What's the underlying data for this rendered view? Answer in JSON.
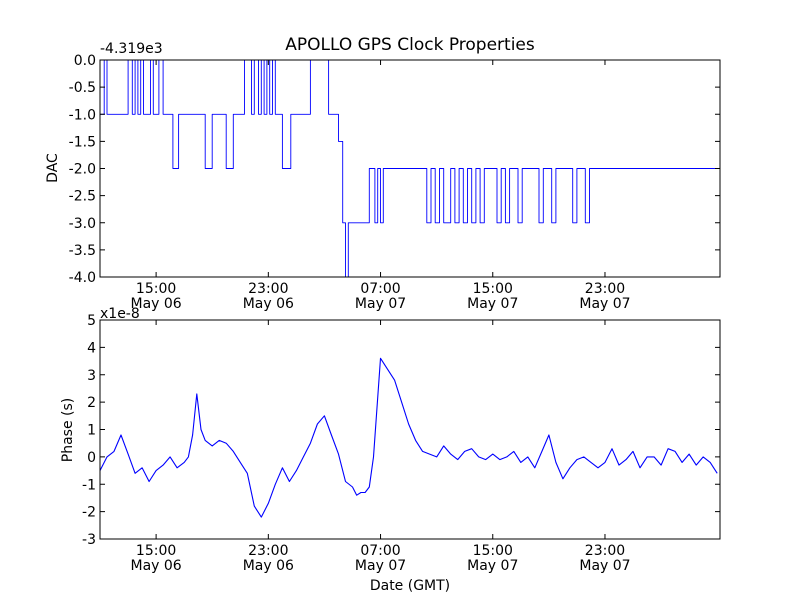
{
  "chart_data": [
    {
      "type": "line",
      "title": "APOLLO GPS Clock Properties",
      "ylabel": "DAC",
      "xlabel": "",
      "y_offset_text": "-4.319e3",
      "ylim": [
        -4.0,
        0.0
      ],
      "x_unit": "hours since May 06 00:00 GMT",
      "xlim": [
        11,
        55.2
      ],
      "yticks": [
        "0.0",
        "-0.5",
        "-1.0",
        "-1.5",
        "-2.0",
        "-2.5",
        "-3.0",
        "-3.5",
        "-4.0"
      ],
      "xticks": [
        {
          "x": 15,
          "time": "15:00",
          "date": "May 06"
        },
        {
          "x": 23,
          "time": "23:00",
          "date": "May 06"
        },
        {
          "x": 31,
          "time": "07:00",
          "date": "May 07"
        },
        {
          "x": 39,
          "time": "15:00",
          "date": "May 07"
        },
        {
          "x": 47,
          "time": "23:00",
          "date": "May 07"
        }
      ],
      "series": [
        {
          "color": "#0000ff",
          "x": [
            11.0,
            11.3,
            11.5,
            12.8,
            13.0,
            13.3,
            13.5,
            13.7,
            13.9,
            14.1,
            14.3,
            14.6,
            14.8,
            15.0,
            15.2,
            15.5,
            15.8,
            16.0,
            16.2,
            16.4,
            16.6,
            16.8,
            17.0,
            17.2,
            17.4,
            18.0,
            18.5,
            19.0,
            19.5,
            20.0,
            20.5,
            21.0,
            21.3,
            21.8,
            22.0,
            22.3,
            22.5,
            22.7,
            22.9,
            23.1,
            23.3,
            23.5,
            23.7,
            24.0,
            24.3,
            24.6,
            25.0,
            25.5,
            26.0,
            26.5,
            27.0,
            27.3,
            28.0,
            28.3,
            28.5,
            28.7,
            29.0,
            29.2,
            29.5,
            29.7,
            30.0,
            30.2,
            30.4,
            30.6,
            30.8,
            31.0,
            31.2,
            31.5,
            32.0,
            32.3,
            32.6,
            32.9,
            33.2,
            33.5,
            34.0,
            34.3,
            34.6,
            34.9,
            35.2,
            35.5,
            36.0,
            36.3,
            36.6,
            36.9,
            37.2,
            37.5,
            37.8,
            38.1,
            38.4,
            38.7,
            39.0,
            39.3,
            39.6,
            39.9,
            40.2,
            40.5,
            40.8,
            41.1,
            41.4,
            41.7,
            42.0,
            42.3,
            42.6,
            42.9,
            43.2,
            43.5,
            43.8,
            44.1,
            44.4,
            44.7,
            45.0,
            45.3,
            45.6,
            45.9,
            46.2,
            46.5,
            46.8,
            47.1,
            47.4,
            47.7,
            48.0,
            48.3,
            48.6,
            48.9,
            49.2,
            49.5,
            49.8,
            50.1,
            50.4,
            50.7,
            51.0,
            51.3,
            51.6,
            51.9,
            52.2,
            52.5,
            52.8,
            53.1,
            53.4,
            53.7,
            54.0,
            54.3,
            54.6,
            54.9,
            55.2
          ],
          "y": [
            -1.0,
            0.0,
            -1.0,
            -1.0,
            0.0,
            -1.0,
            0.0,
            -1.0,
            0.0,
            -1.0,
            -1.0,
            0.0,
            -1.0,
            -1.0,
            0.0,
            -1.0,
            -1.0,
            -1.0,
            -2.0,
            -2.0,
            -1.0,
            -1.0,
            -1.0,
            -1.0,
            -1.0,
            -1.0,
            -2.0,
            -1.0,
            -1.0,
            -2.0,
            -1.0,
            -1.0,
            0.0,
            -1.0,
            0.0,
            -1.0,
            0.0,
            -1.0,
            0.0,
            -1.0,
            0.0,
            -1.0,
            -1.0,
            -2.0,
            -2.0,
            -1.0,
            -1.0,
            -1.0,
            0.0,
            0.0,
            0.0,
            -1.0,
            -1.5,
            -3.0,
            -4.0,
            -3.0,
            -3.0,
            -3.0,
            -3.0,
            -3.0,
            -3.0,
            -2.0,
            -2.0,
            -3.0,
            -2.0,
            -3.0,
            -2.0,
            -2.0,
            -2.0,
            -2.0,
            -2.0,
            -2.0,
            -2.0,
            -2.0,
            -2.0,
            -3.0,
            -2.0,
            -3.0,
            -2.0,
            -3.0,
            -2.0,
            -3.0,
            -2.0,
            -3.0,
            -2.0,
            -3.0,
            -2.0,
            -3.0,
            -2.0,
            -2.0,
            -2.0,
            -3.0,
            -2.0,
            -3.0,
            -2.0,
            -2.0,
            -3.0,
            -2.0,
            -2.0,
            -2.0,
            -2.0,
            -3.0,
            -2.0,
            -2.0,
            -3.0,
            -2.0,
            -2.0,
            -2.0,
            -2.0,
            -3.0,
            -2.0,
            -2.0,
            -3.0,
            -2.0,
            -2.0,
            -2.0,
            -2.0,
            -2.0,
            -2.0,
            -2.0,
            -2.0,
            -2.0,
            -2.0,
            -2.0,
            -2.0,
            -2.0,
            -2.0,
            -2.0,
            -2.0,
            -2.0,
            -2.0,
            -2.0,
            -2.0,
            -2.0,
            -2.0,
            -2.0,
            -2.0,
            -2.0,
            -2.0,
            -2.0,
            -2.0,
            -2.0,
            -2.0,
            -2.0,
            -2.0
          ]
        }
      ]
    },
    {
      "type": "line",
      "title": "",
      "ylabel": "Phase (s)",
      "xlabel": "Date (GMT)",
      "y_offset_text": "x1e-8",
      "ylim": [
        -3,
        5
      ],
      "x_unit": "hours since May 06 00:00 GMT",
      "xlim": [
        11,
        55.2
      ],
      "yticks": [
        "5",
        "4",
        "3",
        "2",
        "1",
        "0",
        "-1",
        "-2",
        "-3"
      ],
      "xticks": [
        {
          "x": 15,
          "time": "15:00",
          "date": "May 06"
        },
        {
          "x": 23,
          "time": "23:00",
          "date": "May 06"
        },
        {
          "x": 31,
          "time": "07:00",
          "date": "May 07"
        },
        {
          "x": 39,
          "time": "15:00",
          "date": "May 07"
        },
        {
          "x": 47,
          "time": "23:00",
          "date": "May 07"
        }
      ],
      "series": [
        {
          "color": "#0000ff",
          "x": [
            11.0,
            11.5,
            12.0,
            12.5,
            13.0,
            13.5,
            14.0,
            14.5,
            15.0,
            15.5,
            16.0,
            16.5,
            17.0,
            17.3,
            17.6,
            17.9,
            18.2,
            18.5,
            19.0,
            19.5,
            20.0,
            20.5,
            21.0,
            21.5,
            22.0,
            22.5,
            23.0,
            23.5,
            24.0,
            24.5,
            25.0,
            25.5,
            26.0,
            26.5,
            27.0,
            27.5,
            28.0,
            28.5,
            29.0,
            29.3,
            29.6,
            29.9,
            30.2,
            30.5,
            31.0,
            31.5,
            32.0,
            32.5,
            33.0,
            33.5,
            34.0,
            34.5,
            35.0,
            35.5,
            36.0,
            36.5,
            37.0,
            37.5,
            38.0,
            38.5,
            39.0,
            39.5,
            40.0,
            40.5,
            41.0,
            41.5,
            42.0,
            42.5,
            43.0,
            43.5,
            44.0,
            44.5,
            45.0,
            45.5,
            46.0,
            46.5,
            47.0,
            47.5,
            48.0,
            48.5,
            49.0,
            49.5,
            50.0,
            50.5,
            51.0,
            51.5,
            52.0,
            52.5,
            53.0,
            53.5,
            54.0,
            54.5,
            55.0
          ],
          "y": [
            -0.5,
            0.0,
            0.2,
            0.8,
            0.1,
            -0.6,
            -0.4,
            -0.9,
            -0.5,
            -0.3,
            0.0,
            -0.4,
            -0.2,
            0.0,
            0.8,
            2.3,
            1.0,
            0.6,
            0.4,
            0.6,
            0.5,
            0.2,
            -0.2,
            -0.6,
            -1.8,
            -2.2,
            -1.7,
            -1.0,
            -0.4,
            -0.9,
            -0.5,
            0.0,
            0.5,
            1.2,
            1.5,
            0.8,
            0.1,
            -0.9,
            -1.1,
            -1.4,
            -1.3,
            -1.3,
            -1.1,
            0.0,
            3.6,
            3.2,
            2.8,
            2.0,
            1.2,
            0.6,
            0.2,
            0.1,
            0.0,
            0.4,
            0.1,
            -0.1,
            0.2,
            0.3,
            0.0,
            -0.1,
            0.1,
            -0.1,
            0.0,
            0.2,
            -0.2,
            0.0,
            -0.4,
            0.2,
            0.8,
            -0.2,
            -0.8,
            -0.4,
            -0.1,
            0.0,
            -0.2,
            -0.4,
            -0.2,
            0.3,
            -0.3,
            -0.1,
            0.2,
            -0.4,
            0.0,
            0.0,
            -0.3,
            0.3,
            0.2,
            -0.2,
            0.1,
            -0.3,
            0.0,
            -0.2,
            -0.6
          ]
        }
      ]
    }
  ]
}
